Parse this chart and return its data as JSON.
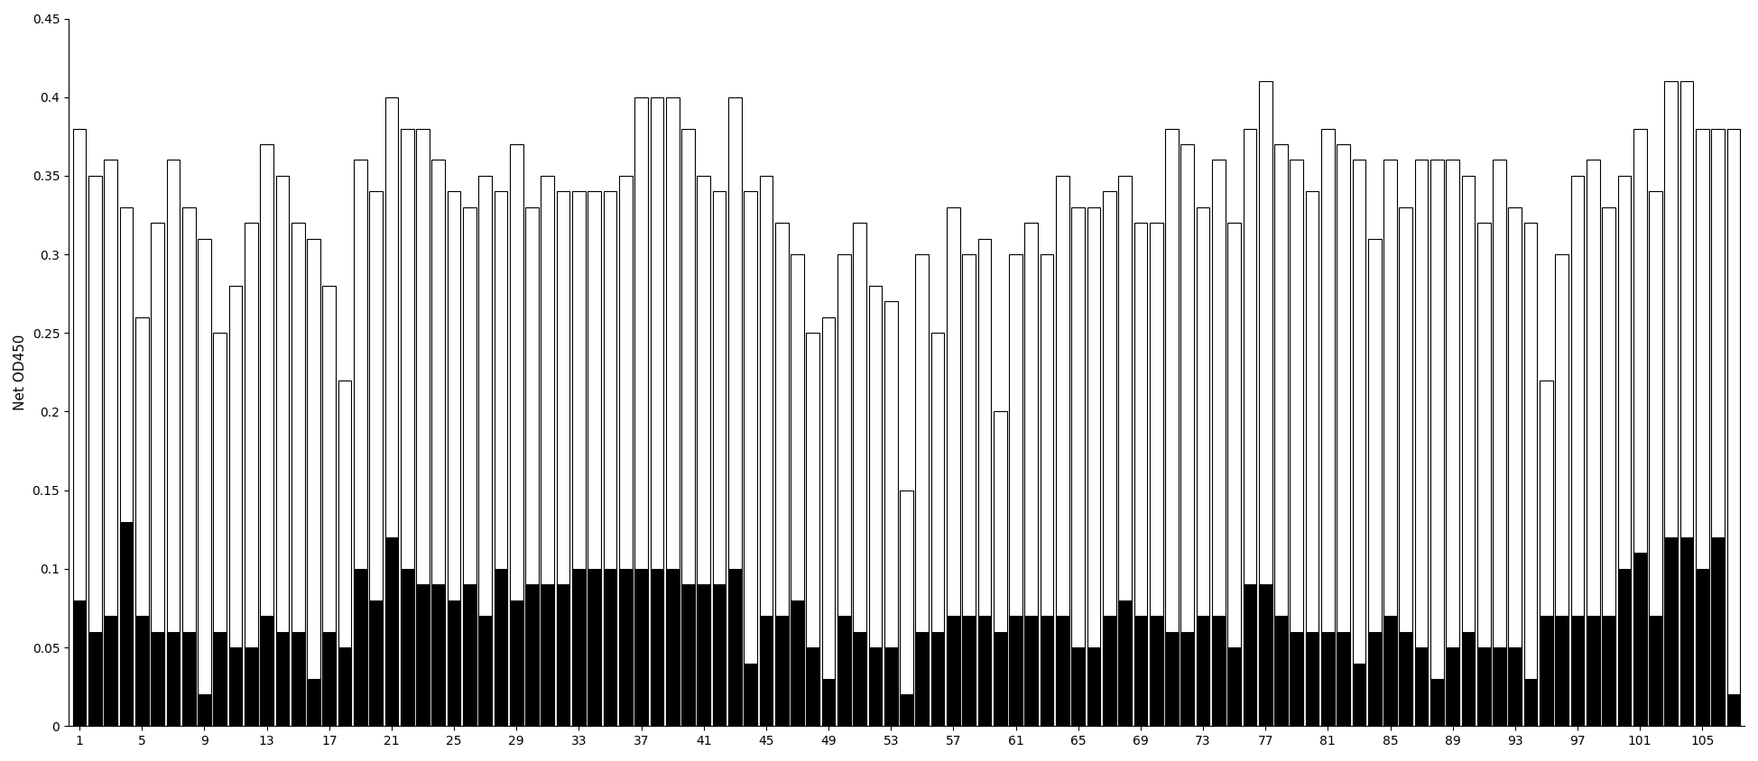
{
  "title": "",
  "ylabel": "Net OD450",
  "xlabel": "",
  "ylim": [
    0,
    0.45
  ],
  "yticks": [
    0,
    0.05,
    0.1,
    0.15,
    0.2,
    0.25,
    0.3,
    0.35,
    0.4,
    0.45
  ],
  "ytick_labels": [
    "0",
    "0.05",
    "0.1",
    "0.15",
    "0.2",
    "0.25",
    "0.3",
    "0.35",
    "0.4",
    "0.45"
  ],
  "xtick_positions": [
    1,
    5,
    9,
    13,
    17,
    21,
    25,
    29,
    33,
    37,
    41,
    45,
    49,
    53,
    57,
    61,
    65,
    69,
    73,
    77,
    81,
    85,
    89,
    93,
    97,
    101,
    105
  ],
  "n_bars": 107,
  "white_bars": [
    0.38,
    0.35,
    0.36,
    0.33,
    0.26,
    0.32,
    0.36,
    0.33,
    0.31,
    0.25,
    0.28,
    0.32,
    0.37,
    0.35,
    0.32,
    0.31,
    0.28,
    0.22,
    0.36,
    0.34,
    0.4,
    0.38,
    0.38,
    0.36,
    0.34,
    0.33,
    0.35,
    0.34,
    0.37,
    0.33,
    0.35,
    0.34,
    0.34,
    0.34,
    0.34,
    0.35,
    0.4,
    0.4,
    0.4,
    0.38,
    0.35,
    0.34,
    0.4,
    0.34,
    0.35,
    0.32,
    0.3,
    0.25,
    0.26,
    0.3,
    0.32,
    0.28,
    0.27,
    0.15,
    0.3,
    0.25,
    0.33,
    0.3,
    0.31,
    0.2,
    0.3,
    0.32,
    0.3,
    0.35,
    0.33,
    0.33,
    0.34,
    0.35,
    0.32,
    0.32,
    0.38,
    0.37,
    0.33,
    0.36,
    0.32,
    0.38,
    0.41,
    0.37,
    0.36,
    0.34,
    0.38,
    0.37,
    0.36,
    0.31,
    0.36,
    0.33,
    0.36,
    0.36,
    0.36,
    0.35,
    0.32,
    0.36,
    0.33,
    0.32,
    0.22,
    0.3,
    0.35,
    0.36,
    0.33,
    0.35,
    0.38,
    0.34,
    0.41,
    0.41,
    0.38,
    0.38,
    0.38
  ],
  "black_bars": [
    0.08,
    0.06,
    0.07,
    0.13,
    0.07,
    0.06,
    0.06,
    0.06,
    0.02,
    0.06,
    0.05,
    0.05,
    0.07,
    0.06,
    0.06,
    0.03,
    0.06,
    0.05,
    0.1,
    0.08,
    0.12,
    0.1,
    0.09,
    0.09,
    0.08,
    0.09,
    0.07,
    0.1,
    0.08,
    0.09,
    0.09,
    0.09,
    0.1,
    0.1,
    0.1,
    0.1,
    0.1,
    0.1,
    0.1,
    0.09,
    0.09,
    0.09,
    0.1,
    0.04,
    0.07,
    0.07,
    0.08,
    0.05,
    0.03,
    0.07,
    0.06,
    0.05,
    0.05,
    0.02,
    0.06,
    0.06,
    0.07,
    0.07,
    0.07,
    0.06,
    0.07,
    0.07,
    0.07,
    0.07,
    0.05,
    0.05,
    0.07,
    0.08,
    0.07,
    0.07,
    0.06,
    0.06,
    0.07,
    0.07,
    0.05,
    0.09,
    0.09,
    0.07,
    0.06,
    0.06,
    0.06,
    0.06,
    0.04,
    0.06,
    0.07,
    0.06,
    0.05,
    0.03,
    0.05,
    0.06,
    0.05,
    0.05,
    0.05,
    0.03,
    0.07,
    0.07,
    0.07,
    0.07,
    0.07,
    0.1,
    0.11,
    0.07,
    0.12,
    0.12,
    0.1,
    0.12,
    0.02
  ],
  "white_color": "#ffffff",
  "black_color": "#000000",
  "edge_color": "#000000",
  "bar_width": 0.85,
  "background_color": "#ffffff",
  "label_fontsize": 11,
  "tick_fontsize": 10,
  "edge_linewidth": 0.8
}
